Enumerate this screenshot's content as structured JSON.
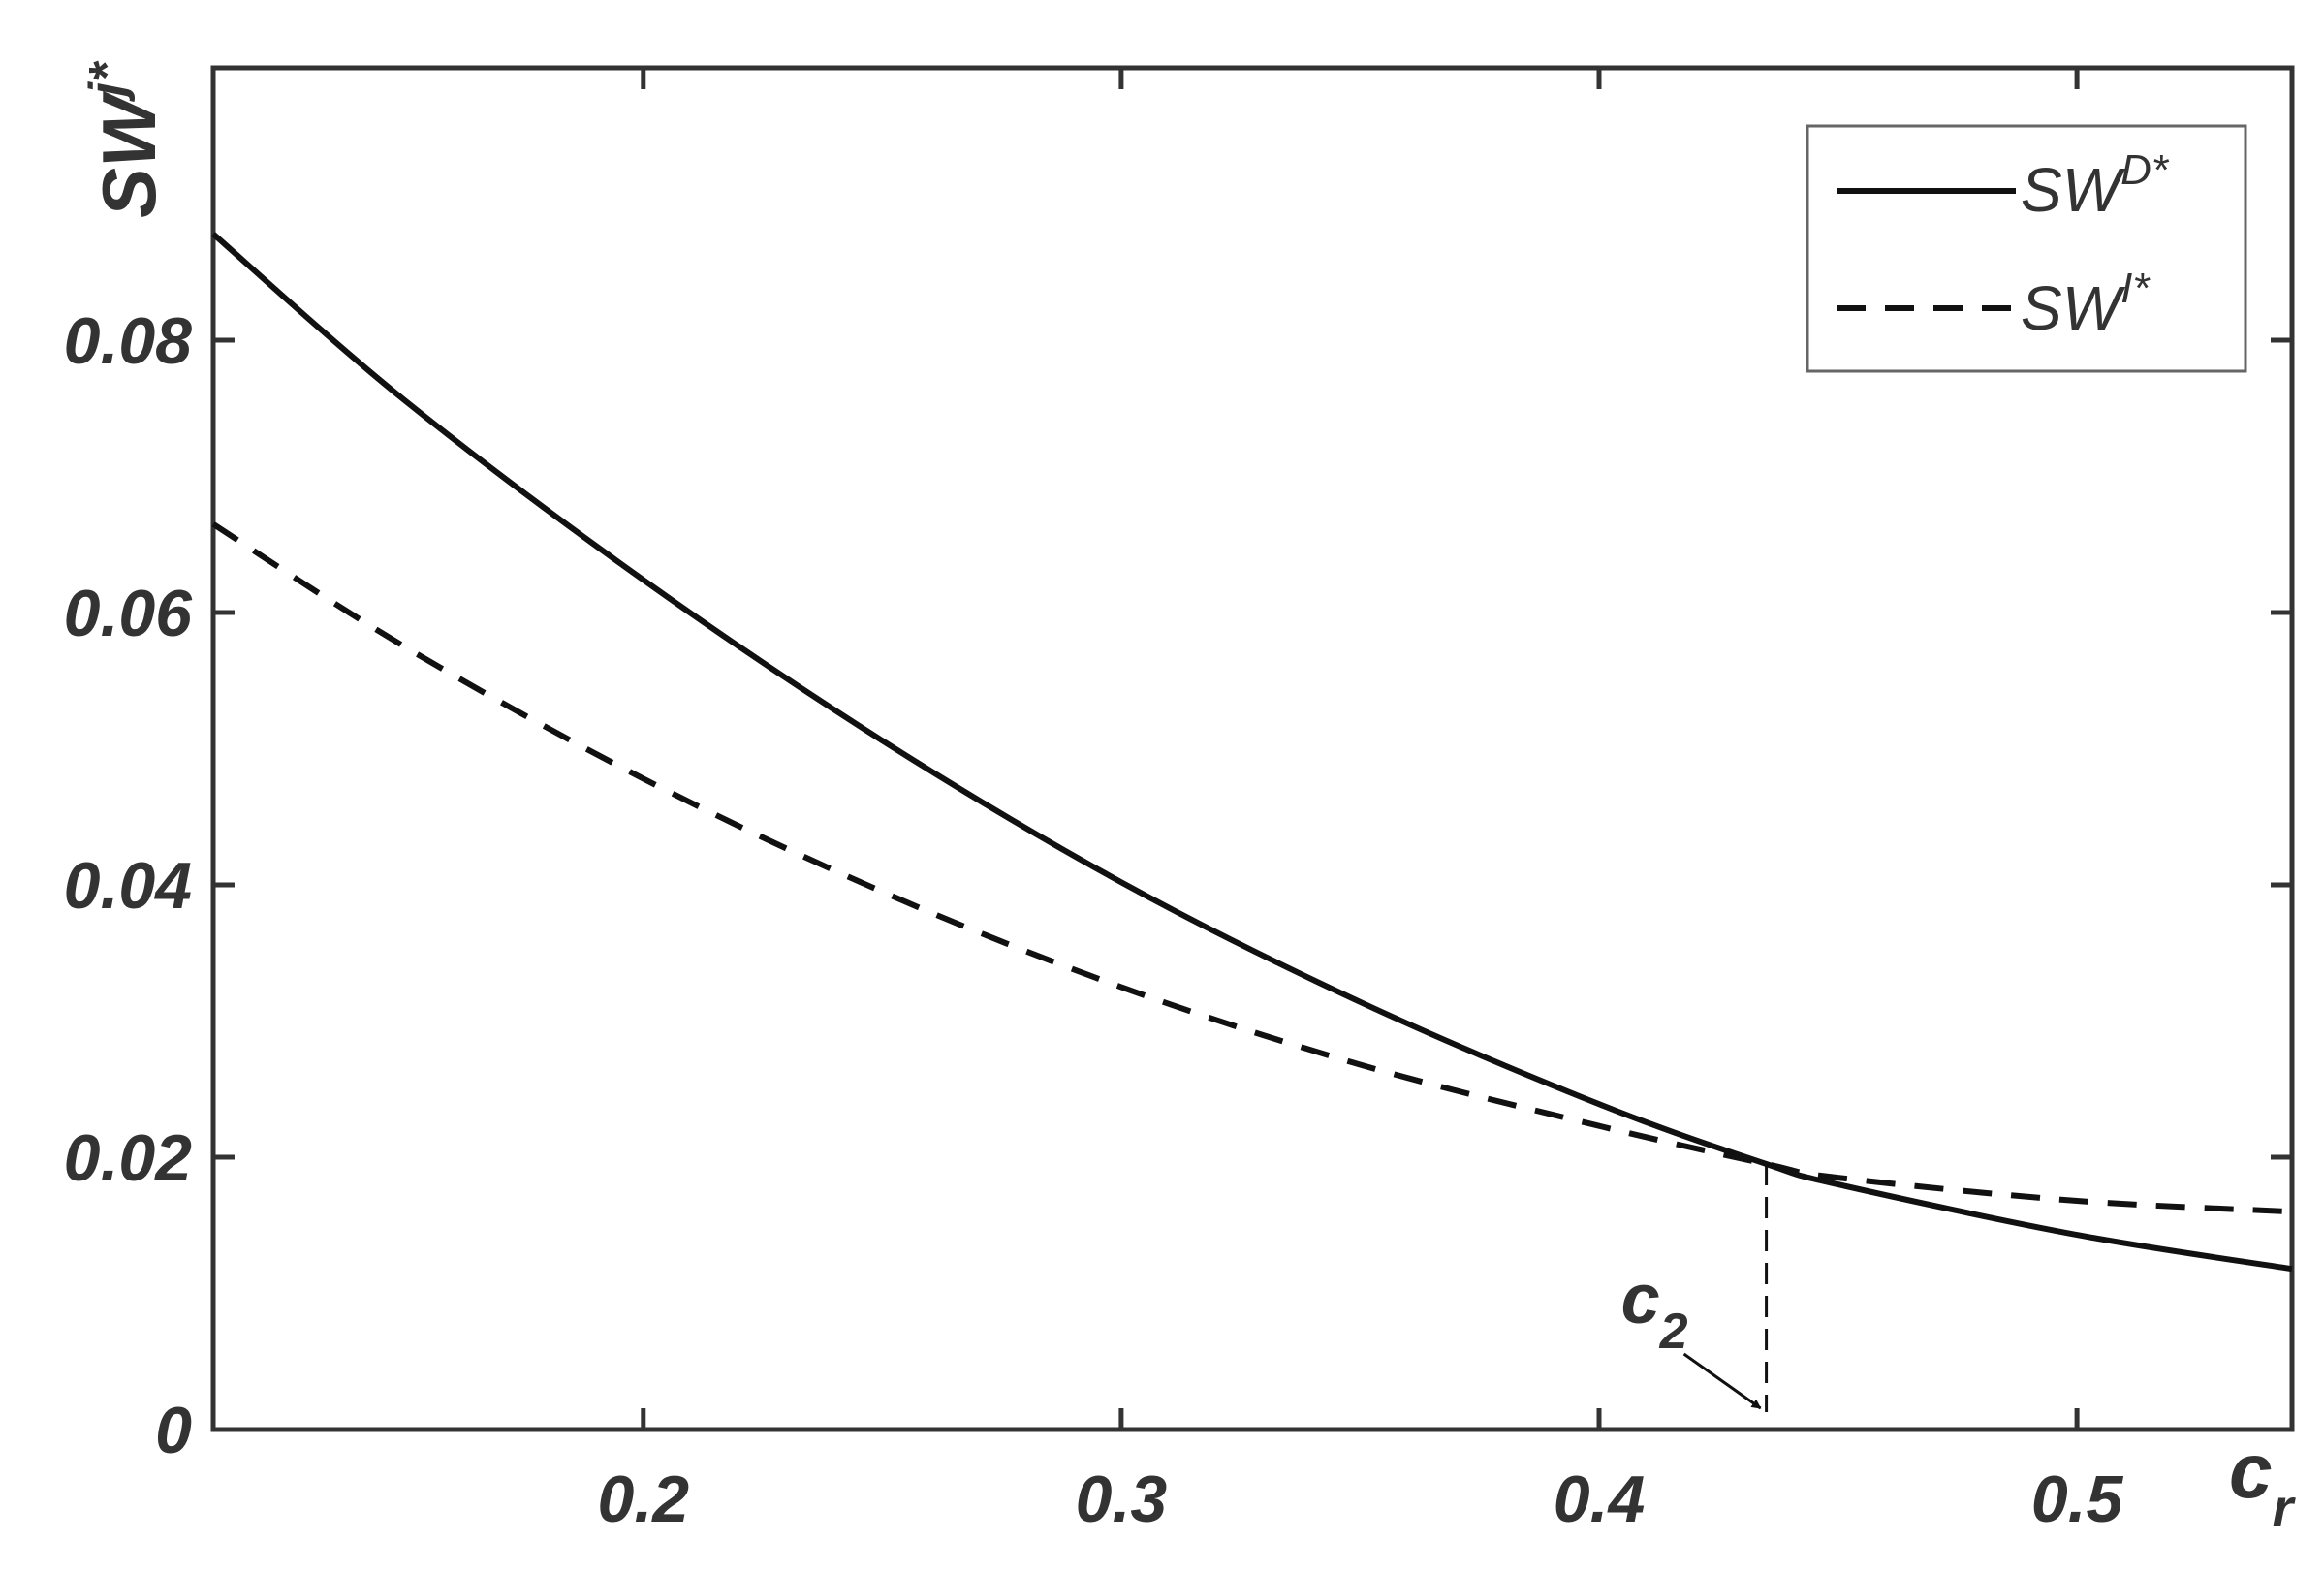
{
  "chart_data": {
    "type": "line",
    "title": "",
    "xlabel": "c_r",
    "ylabel": "SW^{j*}",
    "xlim": [
      0.11,
      0.545
    ],
    "ylim": [
      0,
      0.1
    ],
    "x_ticks": [
      0.2,
      0.3,
      0.4,
      0.5
    ],
    "x_tick_labels": [
      "0.2",
      "0.3",
      "0.4",
      "0.5"
    ],
    "y_ticks": [
      0,
      0.02,
      0.04,
      0.06,
      0.08
    ],
    "y_tick_labels": [
      "0",
      "0.02",
      "0.04",
      "0.06",
      "0.08"
    ],
    "grid": false,
    "legend_position": "top-right",
    "series": [
      {
        "name": "SW^{D*}",
        "style": "solid",
        "x": [
          0.11,
          0.15,
          0.2,
          0.25,
          0.3,
          0.35,
          0.4,
          0.435,
          0.45,
          0.5,
          0.545
        ],
        "y": [
          0.0878,
          0.0756,
          0.0624,
          0.0506,
          0.0402,
          0.0314,
          0.0239,
          0.0195,
          0.018,
          0.0143,
          0.0118
        ]
      },
      {
        "name": "SW^{I*}",
        "style": "dashed",
        "x": [
          0.11,
          0.15,
          0.2,
          0.25,
          0.3,
          0.35,
          0.4,
          0.435,
          0.45,
          0.5,
          0.545
        ],
        "y": [
          0.0665,
          0.0575,
          0.0478,
          0.0395,
          0.0325,
          0.0268,
          0.0223,
          0.0195,
          0.0185,
          0.0168,
          0.016
        ]
      }
    ],
    "annotations": [
      {
        "text": "c_2",
        "x": 0.435,
        "y": 0
      }
    ]
  },
  "labels": {
    "xlabel_main": "c",
    "xlabel_sub": "r",
    "ylabel_main": "SW",
    "ylabel_sup": "j*",
    "legend": [
      {
        "main": "SW",
        "sup": "D*"
      },
      {
        "main": "SW",
        "sup": "I*"
      }
    ],
    "annotation_main": "c",
    "annotation_sub": "2"
  }
}
